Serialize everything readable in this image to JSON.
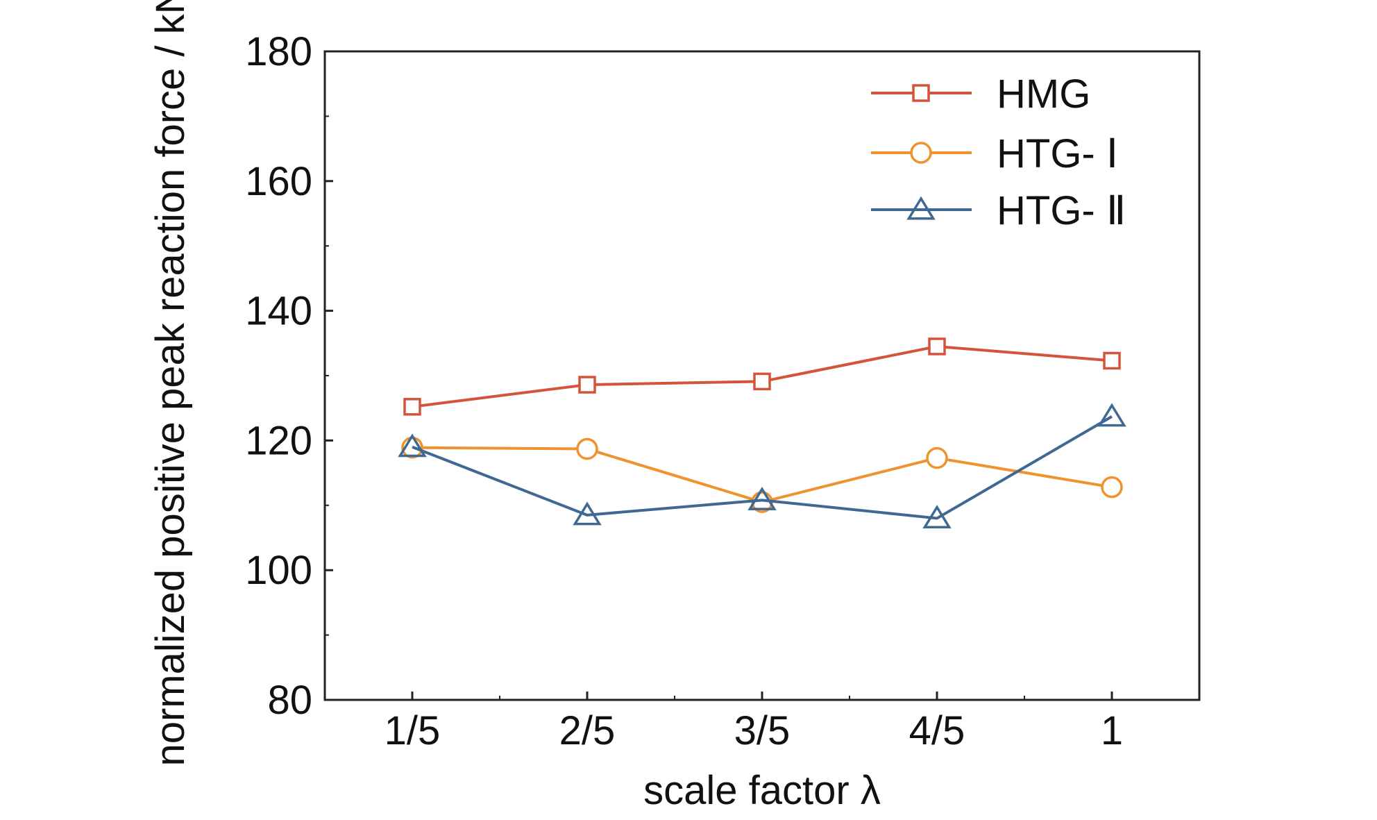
{
  "chart_data": {
    "type": "line",
    "title": "",
    "xlabel": "scale factor λ",
    "ylabel": "normalized positive peak reaction force / kN",
    "categories": [
      "1/5",
      "2/5",
      "3/5",
      "4/5",
      "1"
    ],
    "ylim": [
      80,
      180
    ],
    "yticks": [
      "80",
      "100",
      "120",
      "140",
      "160",
      "180"
    ],
    "grid": false,
    "legend_position": "top-right",
    "series": [
      {
        "name": "HMG",
        "marker": "square",
        "color": "#d4533a",
        "values": [
          125.2,
          128.6,
          129.1,
          134.5,
          132.3
        ]
      },
      {
        "name": "HTG- Ⅰ",
        "marker": "circle",
        "color": "#f0922e",
        "values": [
          118.9,
          118.7,
          110.5,
          117.3,
          112.8
        ]
      },
      {
        "name": "HTG- Ⅱ",
        "marker": "triangle",
        "color": "#3f6893",
        "values": [
          119.0,
          108.5,
          110.8,
          108.0,
          123.7
        ]
      }
    ]
  }
}
